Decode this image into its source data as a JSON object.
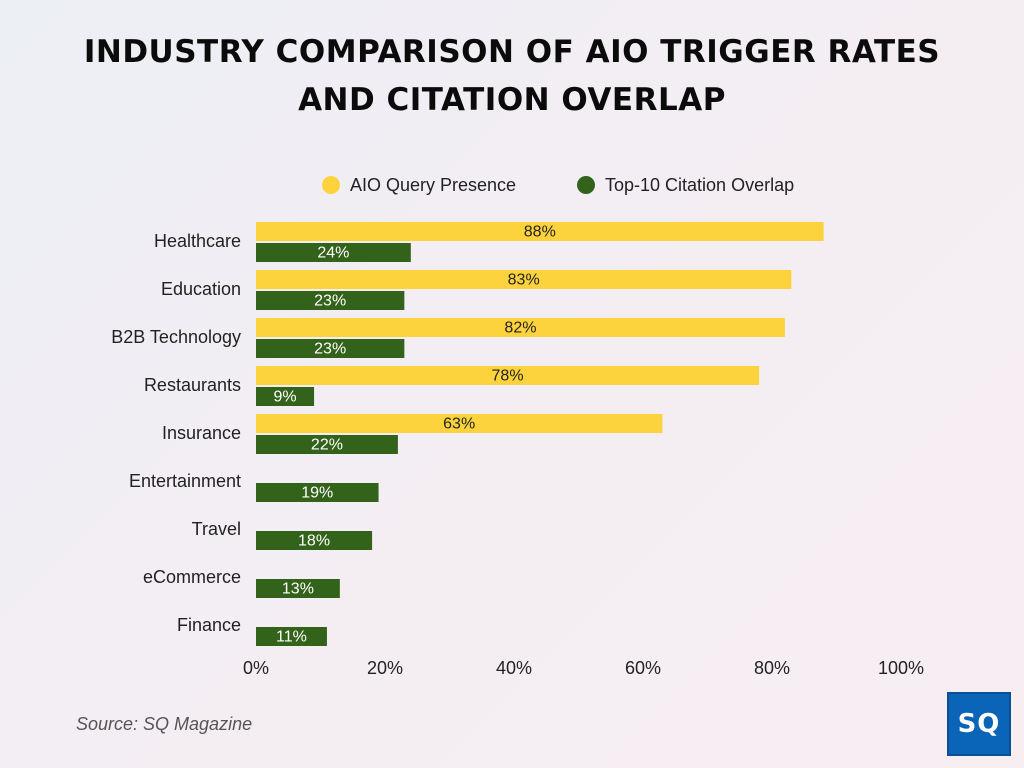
{
  "title_line1": "INDUSTRY COMPARISON OF AIO TRIGGER RATES",
  "title_line2": "AND CITATION OVERLAP",
  "source": "Source: SQ Magazine",
  "logo_text": "SQ",
  "colors": {
    "aio": "#fdd33d",
    "citation": "#33631a",
    "aio_label": "#222222",
    "citation_label": "#ffffff"
  },
  "chart_data": {
    "type": "bar",
    "orientation": "horizontal",
    "categories": [
      "Healthcare",
      "Education",
      "B2B Technology",
      "Restaurants",
      "Insurance",
      "Entertainment",
      "Travel",
      "eCommerce",
      "Finance"
    ],
    "series": [
      {
        "name": "AIO Query Presence",
        "values": [
          88,
          83,
          82,
          78,
          63,
          null,
          null,
          null,
          null
        ],
        "labels": [
          "88%",
          "83%",
          "82%",
          "78%",
          "63%",
          "",
          "",
          "",
          ""
        ]
      },
      {
        "name": "Top-10 Citation Overlap",
        "values": [
          24,
          23,
          23,
          9,
          22,
          19,
          18,
          13,
          11
        ],
        "labels": [
          "24%",
          "23%",
          "23%",
          "9%",
          "22%",
          "19%",
          "18%",
          "13%",
          "11%"
        ]
      }
    ],
    "xlim": [
      0,
      100
    ],
    "xticks": [
      0,
      20,
      40,
      60,
      80,
      100
    ],
    "xtick_labels": [
      "0%",
      "20%",
      "40%",
      "60%",
      "80%",
      "100%"
    ],
    "grid": false,
    "legend_position": "top"
  }
}
